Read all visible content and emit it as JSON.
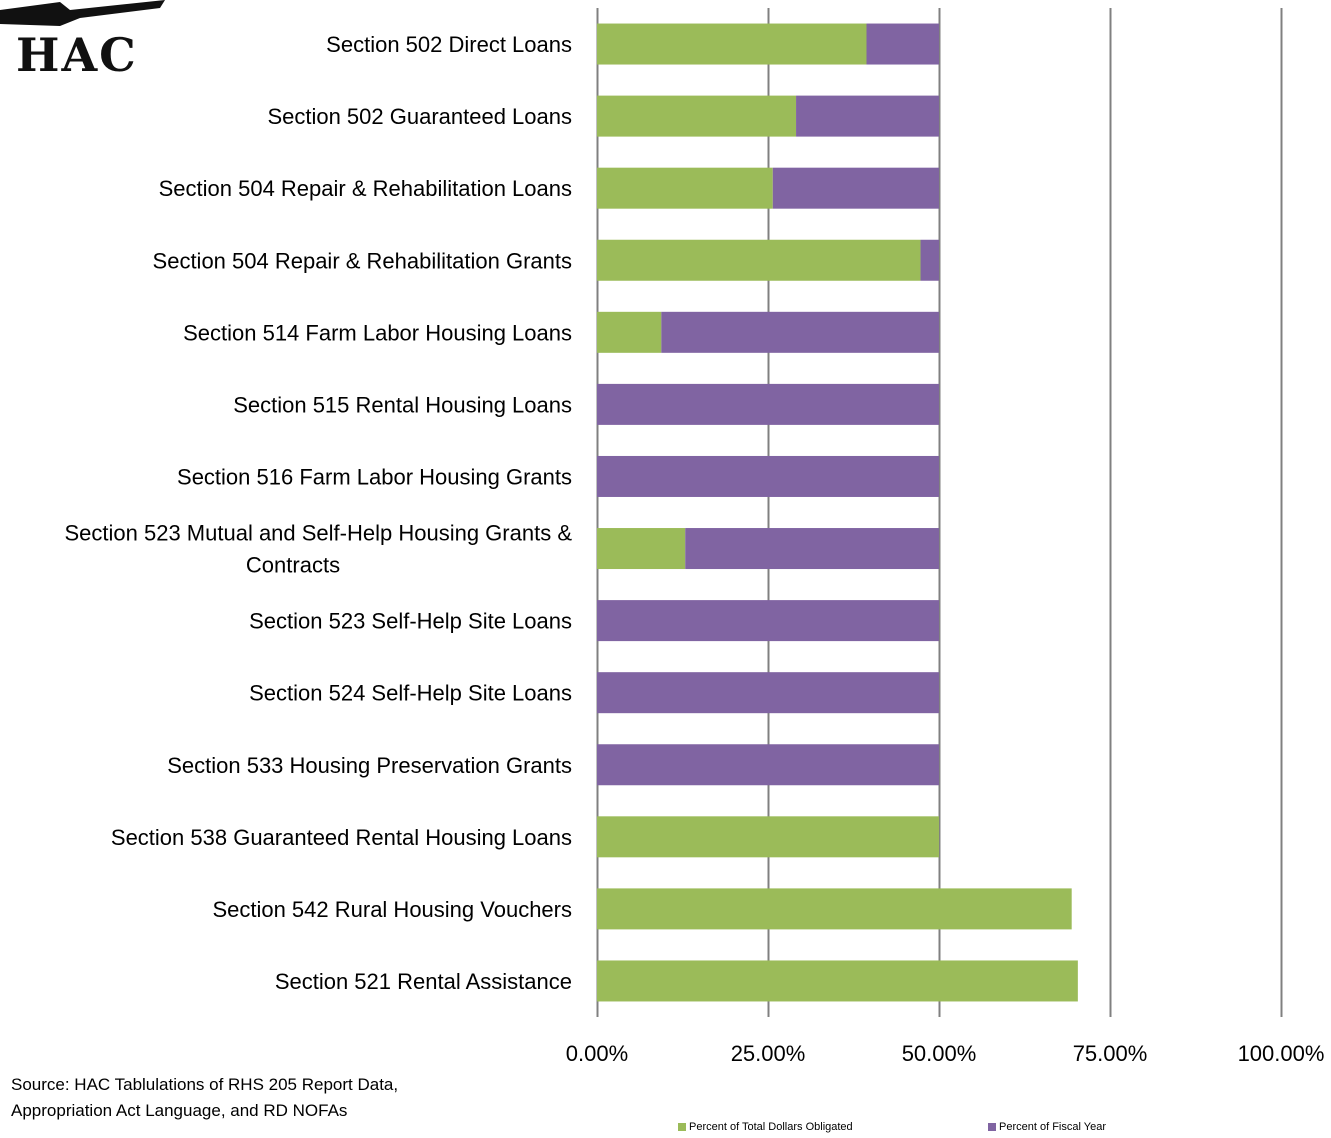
{
  "logo": {
    "text": "HAC"
  },
  "source": {
    "line1": "Source:  HAC Tablulations of RHS 205 Report Data,",
    "line2": "Appropriation Act Language, and RD NOFAs"
  },
  "colors": {
    "green": "#9BBB59",
    "purple": "#8064A2",
    "grid": "#808080"
  },
  "chart_data": {
    "type": "bar",
    "orientation": "horizontal",
    "stacked": true,
    "categories": [
      "Section 502 Direct Loans",
      "Section 502 Guaranteed Loans",
      "Section 504 Repair & Rehabilitation Loans",
      "Section 504 Repair & Rehabilitation Grants",
      "Section 514 Farm Labor Housing Loans",
      "Section 515 Rental Housing Loans",
      "Section 516 Farm Labor Housing Grants",
      "Section 523 Mutual and Self-Help Housing Grants & Contracts",
      "Section 523 Self-Help Site Loans",
      "Section 524 Self-Help Site Loans",
      "Section 533 Housing Preservation Grants",
      "Section 538 Guaranteed Rental Housing Loans",
      "Section 542 Rural Housing Vouchers",
      "Section 521 Rental Assistance"
    ],
    "category_label_lines": [
      [
        "Section 502 Direct Loans"
      ],
      [
        "Section 502 Guaranteed Loans"
      ],
      [
        "Section 504 Repair & Rehabilitation Loans"
      ],
      [
        "Section 504 Repair & Rehabilitation Grants"
      ],
      [
        "Section 514 Farm Labor Housing Loans"
      ],
      [
        "Section 515 Rental Housing Loans"
      ],
      [
        "Section 516 Farm Labor Housing Grants"
      ],
      [
        "Section 523 Mutual and Self-Help Housing Grants &",
        "Contracts"
      ],
      [
        "Section 523 Self-Help Site Loans"
      ],
      [
        "Section 524 Self-Help Site Loans"
      ],
      [
        "Section 533 Housing Preservation Grants"
      ],
      [
        "Section 538 Guaranteed Rental Housing Loans"
      ],
      [
        "Section 542 Rural Housing Vouchers"
      ],
      [
        "Section 521 Rental Assistance"
      ]
    ],
    "series": [
      {
        "name": "Percent of Total Dollars Obligated",
        "color": "#9BBB59",
        "values": [
          39.4,
          29.1,
          25.7,
          47.3,
          9.4,
          0,
          0,
          12.9,
          0,
          0,
          0,
          50.0,
          69.4,
          70.3
        ]
      },
      {
        "name": "Percent of Fiscal Year",
        "color": "#8064A2",
        "values": [
          10.6,
          20.9,
          24.3,
          2.7,
          40.6,
          50.0,
          50.0,
          37.1,
          50.0,
          50.0,
          50.0,
          0,
          0,
          0
        ]
      }
    ],
    "xlim": [
      0,
      100
    ],
    "xticks": [
      0,
      25,
      50,
      75,
      100
    ],
    "xtick_labels": [
      "0.00%",
      "25.00%",
      "50.00%",
      "75.00%",
      "100.00%"
    ],
    "grid": true,
    "legend_position": "bottom"
  }
}
